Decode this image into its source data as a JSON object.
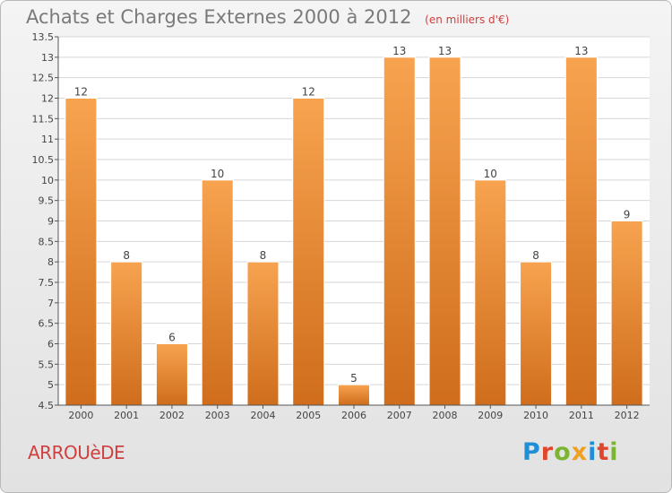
{
  "title": "Achats et Charges Externes 2000 à 2012",
  "unit": "(en milliers d'€)",
  "commune": "ARROUèDE",
  "logo": "Proxiti",
  "colors": {
    "bar_light": "#f7a34f",
    "bar_dark": "#cf6d1c",
    "title": "#7a7a7a",
    "commune": "#d04040",
    "grid": "#d6d6d6"
  },
  "chart_data": {
    "type": "bar",
    "categories": [
      "2000",
      "2001",
      "2002",
      "2003",
      "2004",
      "2005",
      "2006",
      "2007",
      "2008",
      "2009",
      "2010",
      "2011",
      "2012"
    ],
    "values": [
      12,
      8,
      6,
      10,
      8,
      12,
      5,
      13,
      13,
      10,
      8,
      13,
      9
    ],
    "ylim": [
      4.5,
      13.5
    ],
    "yticks": [
      "4.5",
      "5",
      "5.5",
      "6",
      "6.5",
      "7",
      "7.5",
      "8",
      "8.5",
      "9",
      "9.5",
      "10",
      "10.5",
      "11",
      "11.5",
      "12",
      "12.5",
      "13",
      "13.5"
    ],
    "grid": true
  }
}
